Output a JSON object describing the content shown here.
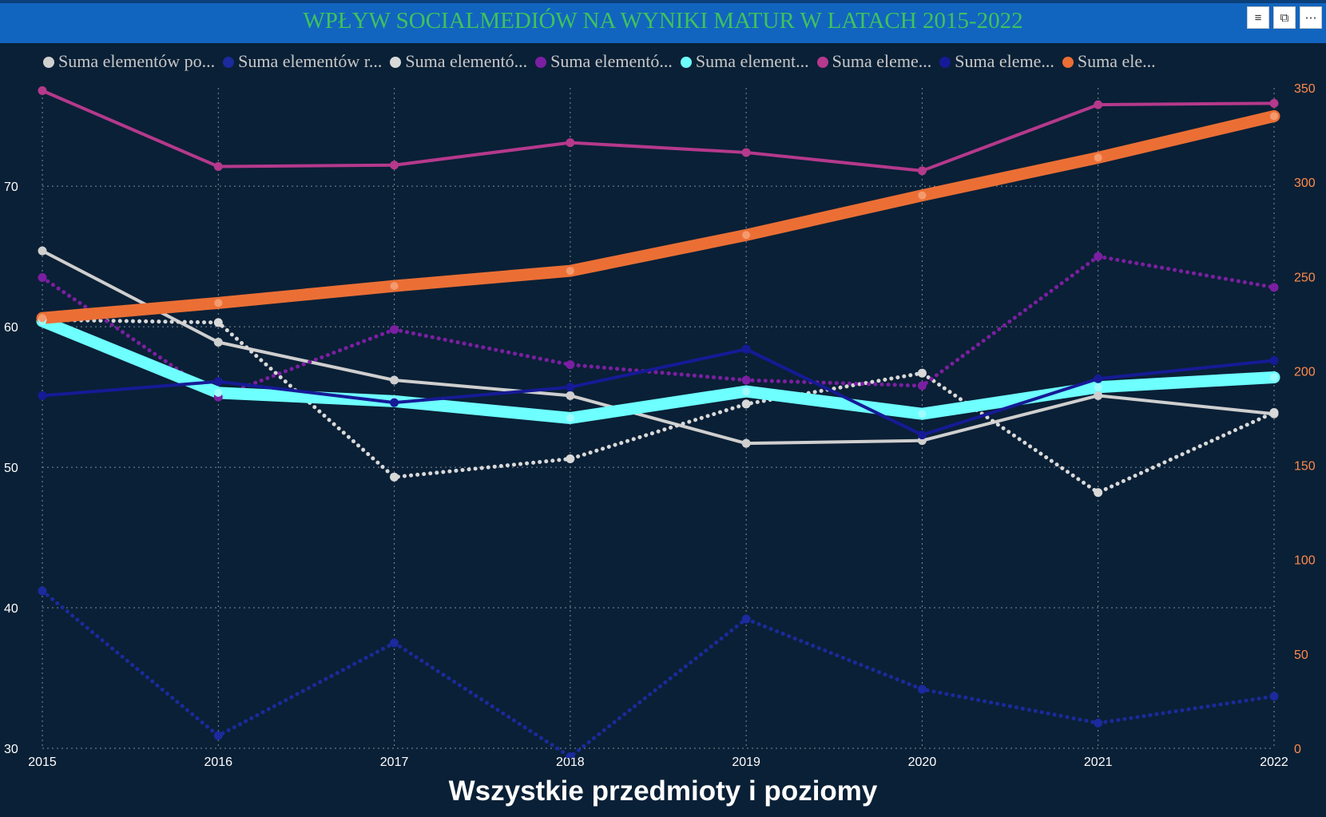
{
  "header": {
    "title": "WPŁYW SOCIALMEDIÓW NA WYNIKI MATUR W LATACH 2015-2022",
    "filter_icon": "filter-icon",
    "focus_icon": "focus-mode-icon",
    "more_icon": "more-options-icon"
  },
  "colors": {
    "background": "#0a2036",
    "titlebar": "#1265bf",
    "title_text": "#3ec25e",
    "right_axis": "#ff8a4a"
  },
  "chart_data": {
    "type": "line",
    "title": "WPŁYW SOCIALMEDIÓW NA WYNIKI MATUR W LATACH 2015-2022",
    "xlabel": "Wszystkie przedmioty i poziomy",
    "categories": [
      "2015",
      "2016",
      "2017",
      "2018",
      "2019",
      "2020",
      "2021",
      "2022"
    ],
    "y_left": {
      "range": [
        30,
        77
      ],
      "ticks": [
        "30",
        "40",
        "50",
        "60",
        "70"
      ],
      "tick_values": [
        30,
        40,
        50,
        60,
        70
      ]
    },
    "y_right": {
      "range": [
        0,
        350
      ],
      "ticks": [
        "0",
        "50",
        "100",
        "150",
        "200",
        "250",
        "300",
        "350"
      ],
      "tick_values": [
        0,
        50,
        100,
        150,
        200,
        250,
        300,
        350
      ]
    },
    "grid": true,
    "legend_position": "top",
    "series": [
      {
        "name": "Suma elementów po...",
        "axis": "left",
        "color": "#cfcfcf",
        "style": "solid",
        "width": 4,
        "values": [
          65.4,
          58.9,
          56.2,
          55.1,
          51.7,
          51.9,
          55.1,
          53.8
        ]
      },
      {
        "name": "Suma elementów r...",
        "axis": "left",
        "color": "#1b2a9c",
        "style": "dotted",
        "width": 5,
        "values": [
          41.2,
          30.9,
          37.5,
          29.4,
          39.2,
          34.2,
          31.8,
          33.7
        ]
      },
      {
        "name": "Suma elementó...",
        "axis": "left",
        "color": "#d9d9d9",
        "style": "dotted",
        "width": 5,
        "values": [
          60.5,
          60.3,
          49.3,
          50.6,
          54.5,
          56.7,
          48.2,
          53.9
        ]
      },
      {
        "name": "Suma elementó...",
        "axis": "left",
        "color": "#7b1fa2",
        "style": "dotted",
        "width": 5,
        "values": [
          63.5,
          55.0,
          59.8,
          57.3,
          56.2,
          55.8,
          65.0,
          62.8
        ]
      },
      {
        "name": "Suma element...",
        "axis": "left",
        "color": "#6effff",
        "style": "solid",
        "width": 15,
        "values": [
          60.4,
          55.3,
          54.7,
          53.5,
          55.4,
          53.8,
          55.7,
          56.4
        ]
      },
      {
        "name": "Suma eleme...",
        "axis": "left",
        "color": "#b5398c",
        "style": "solid",
        "width": 4,
        "values": [
          76.8,
          71.4,
          71.5,
          73.1,
          72.4,
          71.1,
          75.8,
          75.9
        ]
      },
      {
        "name": "Suma eleme...",
        "axis": "left",
        "color": "#161a96",
        "style": "solid",
        "width": 4,
        "values": [
          55.1,
          56.1,
          54.6,
          55.7,
          58.4,
          52.3,
          56.3,
          57.6
        ]
      },
      {
        "name": "Suma ele...",
        "axis": "right",
        "color": "#eb6f35",
        "style": "solid",
        "width": 15,
        "values": [
          228,
          236,
          245,
          253,
          272,
          293,
          313,
          335
        ]
      }
    ]
  }
}
